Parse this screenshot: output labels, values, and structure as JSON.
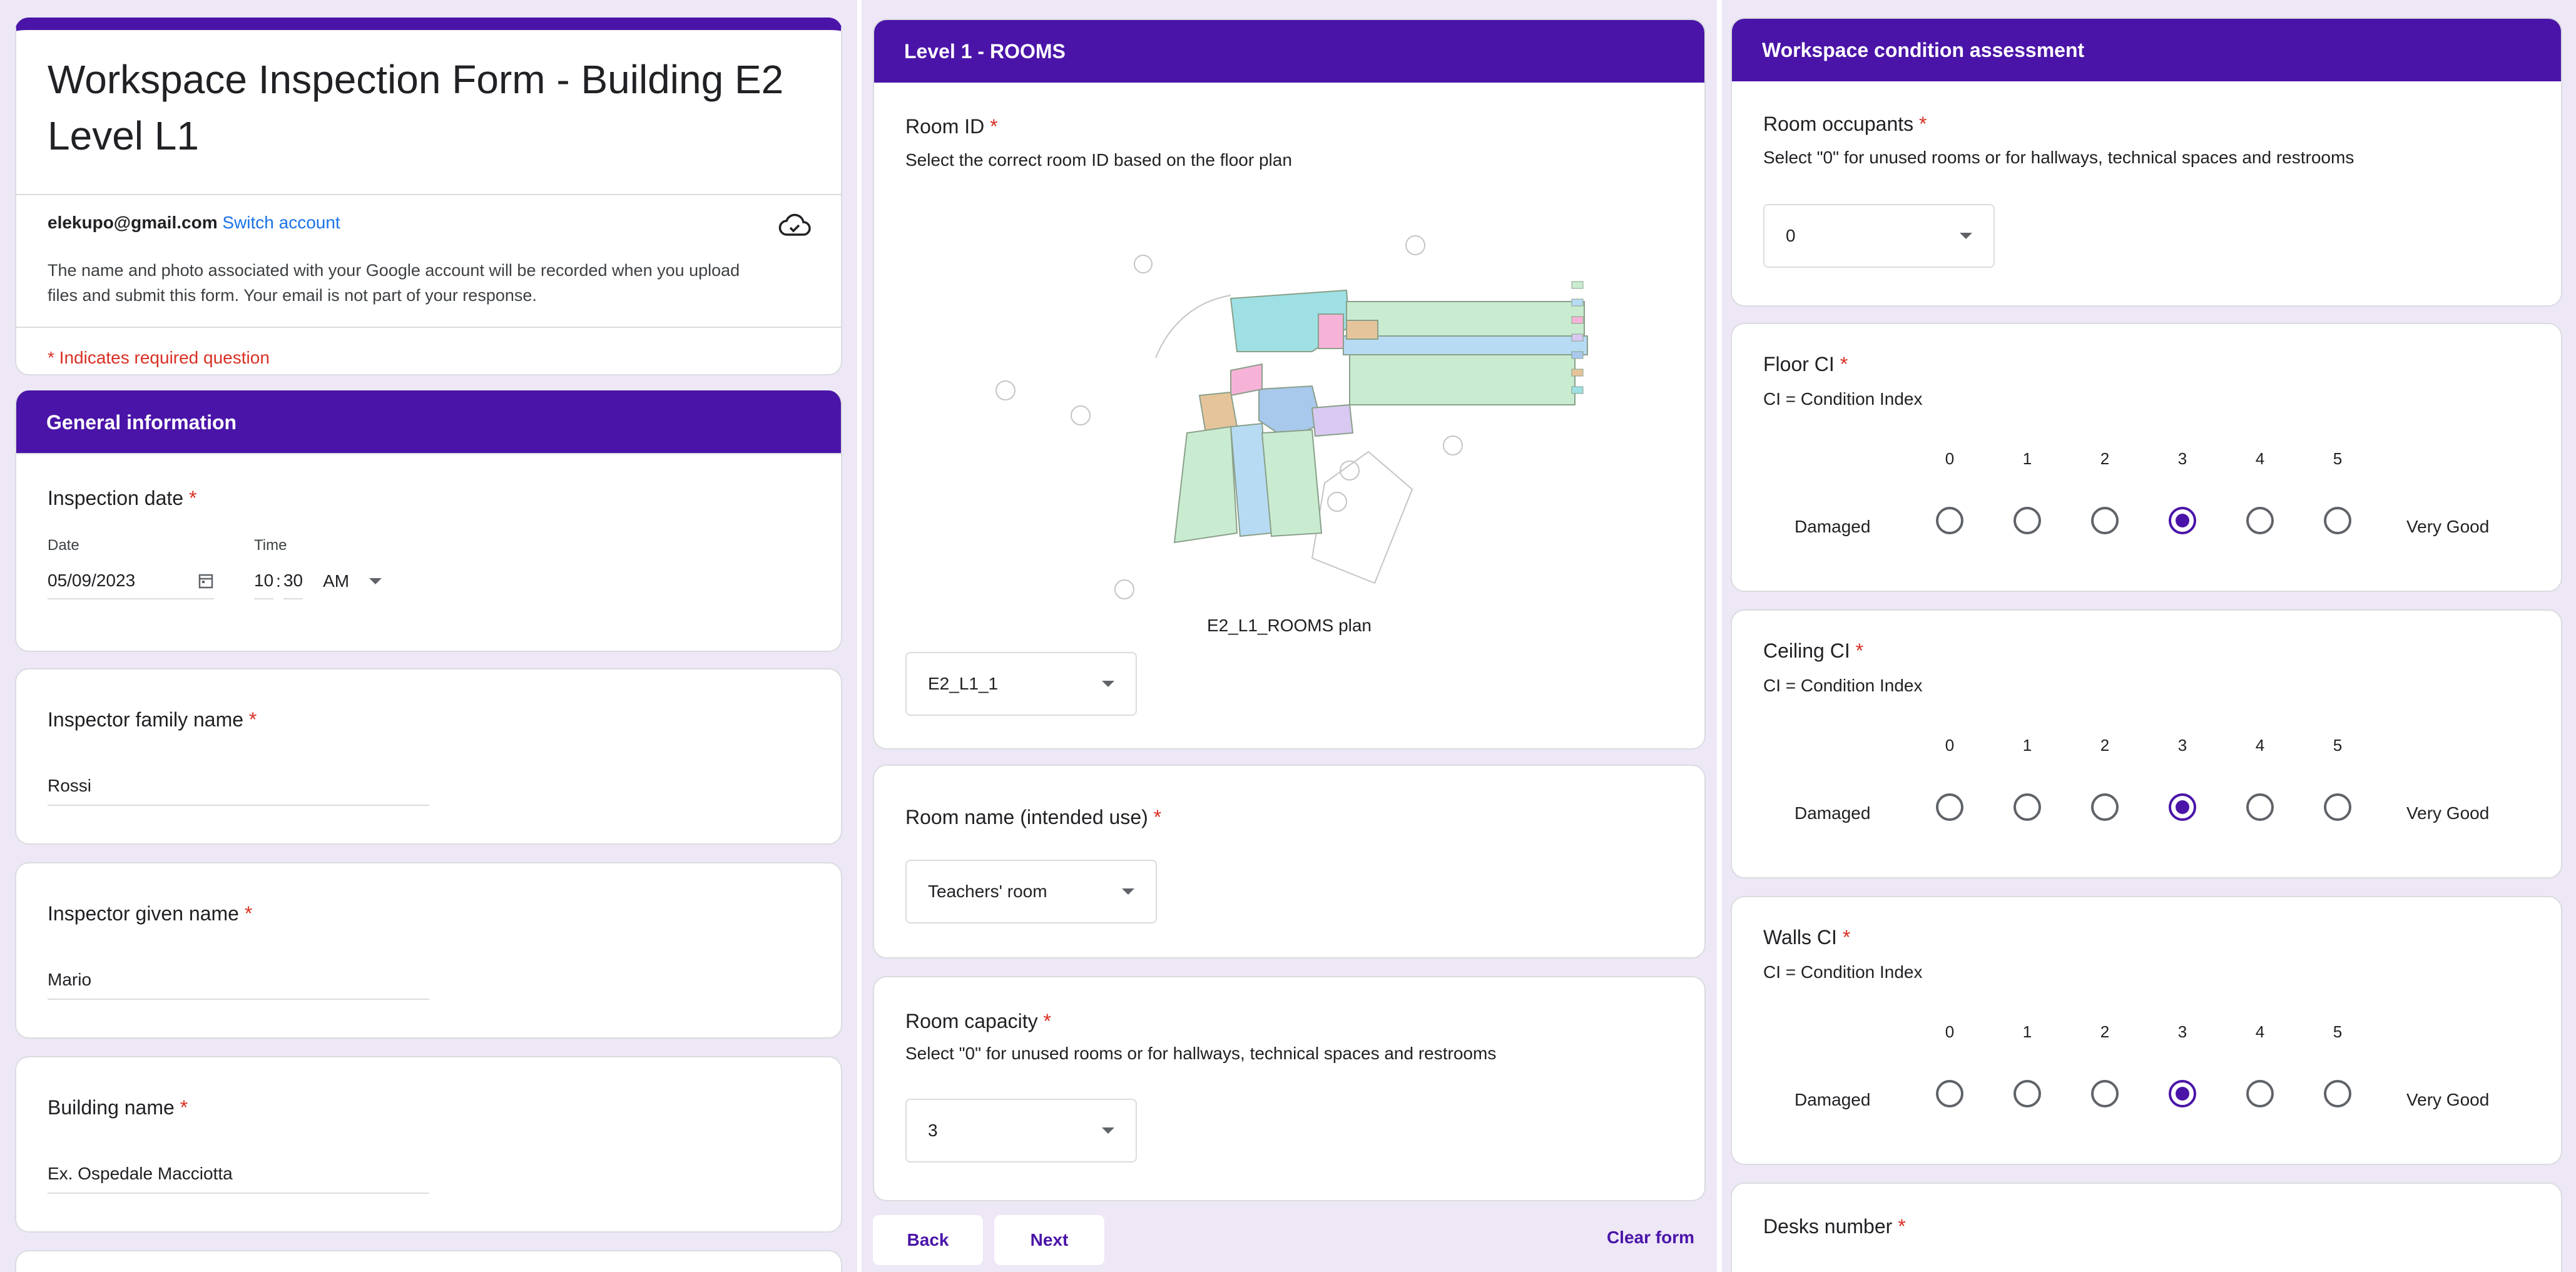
{
  "form": {
    "title_line1": "Workspace Inspection Form - Building E2",
    "title_line2": "Level L1",
    "email": "elekupo@gmail.com",
    "switch_account": "Switch account",
    "notice_line1": "The name and photo associated with your Google account will be recorded when you upload",
    "notice_line2": "files and submit this form. Your email is not part of your response.",
    "required_note": "* Indicates required question"
  },
  "general_section": {
    "header": "General information",
    "inspection_date": {
      "title": "Inspection date",
      "date_label": "Date",
      "date_value": "05/09/2023",
      "time_label": "Time",
      "hour": "10",
      "minute": "30",
      "ampm": "AM"
    },
    "family_name": {
      "title": "Inspector family name",
      "value": "Rossi"
    },
    "given_name": {
      "title": "Inspector  given name",
      "value": "Mario"
    },
    "building_name": {
      "title": "Building name",
      "value": "Ex. Ospedale Macciotta"
    }
  },
  "rooms_section": {
    "header": "Level 1 - ROOMS",
    "room_id": {
      "title": "Room ID",
      "description": "Select the correct room ID based on the floor plan",
      "image_caption": "E2_L1_ROOMS plan",
      "value": "E2_L1_1"
    },
    "room_name": {
      "title": "Room name (intended use)",
      "value": "Teachers' room"
    },
    "room_capacity": {
      "title": "Room capacity",
      "description": "Select \"0\" for unused rooms or for hallways, technical spaces and restrooms",
      "value": "3"
    },
    "nav": {
      "back": "Back",
      "next": "Next",
      "clear": "Clear form"
    }
  },
  "condition_section": {
    "header": "Workspace condition assessment",
    "occupants": {
      "title": "Room occupants",
      "description": "Select \"0\" for unused rooms or for hallways, technical spaces and restrooms",
      "value": "0"
    },
    "scale_labels": {
      "low": "Damaged",
      "high": "Very Good"
    },
    "scale_values": [
      "0",
      "1",
      "2",
      "3",
      "4",
      "5"
    ],
    "floor": {
      "title": "Floor CI",
      "description": "CI = Condition Index",
      "selected": 3
    },
    "ceiling": {
      "title": "Ceiling CI",
      "description": "CI = Condition Index",
      "selected": 3
    },
    "walls": {
      "title": "Walls CI",
      "description": "CI = Condition Index",
      "selected": 3
    },
    "desks": {
      "title": "Desks number"
    }
  },
  "colors": {
    "accent": "#4a14a8",
    "background": "#ede7f6",
    "required": "#d93025",
    "link": "#1a73e8"
  },
  "icons": {
    "cloud": "cloud-done-icon",
    "calendar": "calendar-icon",
    "dropdown": "chevron-down-icon"
  }
}
